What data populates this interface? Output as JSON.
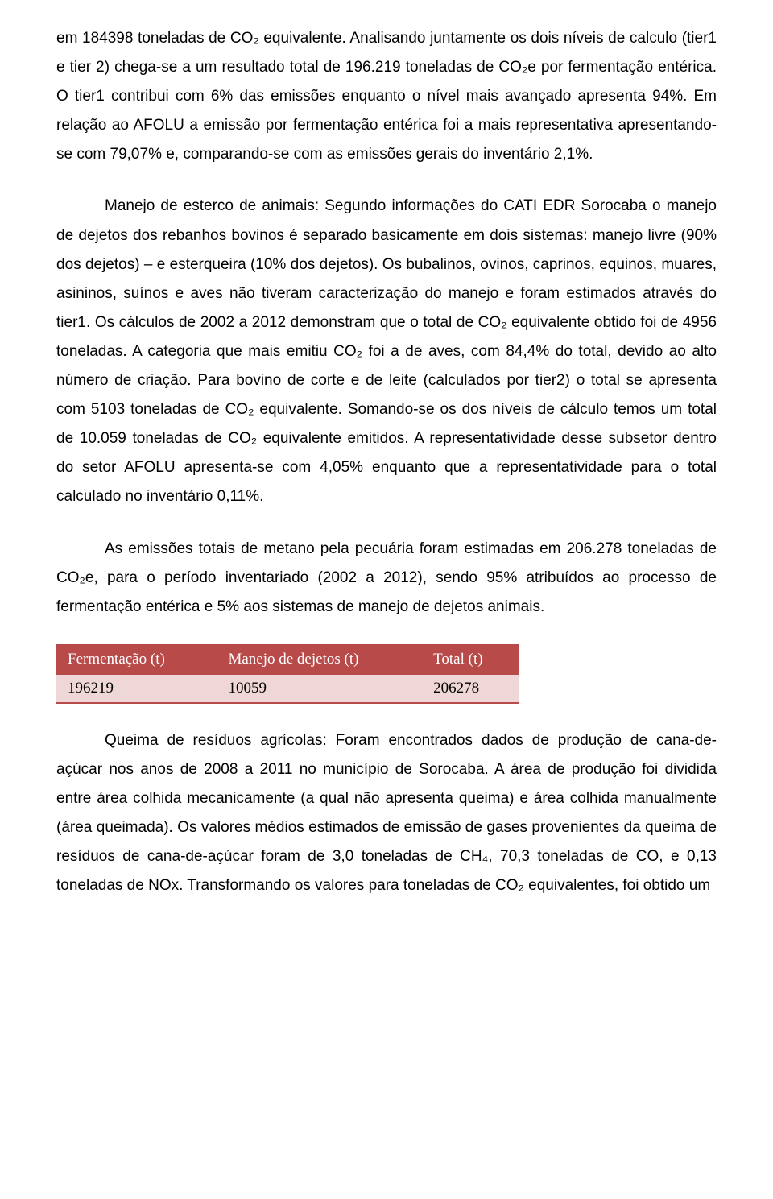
{
  "p1": "em 184398 toneladas de CO₂ equivalente. Analisando juntamente os dois níveis de calculo (tier1 e tier 2) chega-se a um resultado total de 196.219  toneladas de CO₂e por fermentação entérica. O tier1 contribui com 6% das emissões enquanto o nível mais avançado apresenta 94%. Em relação ao AFOLU a emissão por fermentação entérica foi a mais representativa apresentando-se com 79,07% e, comparando-se com as emissões gerais do inventário 2,1%.",
  "p2": "Manejo de esterco de animais: Segundo informações do CATI EDR Sorocaba o manejo de dejetos dos rebanhos bovinos é separado basicamente em dois sistemas: manejo livre (90% dos dejetos) – e esterqueira (10% dos dejetos). Os bubalinos, ovinos, caprinos, equinos, muares, asininos, suínos e aves não tiveram caracterização do manejo e foram estimados através do tier1. Os cálculos de 2002 a 2012 demonstram que o total de CO₂ equivalente obtido foi de 4956 toneladas. A categoria que mais emitiu CO₂ foi a de aves, com 84,4% do total, devido ao alto número de criação. Para bovino de corte e de leite (calculados por tier2) o total se apresenta com 5103 toneladas de CO₂ equivalente. Somando-se os dos níveis de cálculo temos um total de 10.059 toneladas de CO₂ equivalente emitidos. A representatividade desse subsetor dentro do setor AFOLU apresenta-se com 4,05% enquanto que a representatividade para o total calculado no inventário 0,11%.",
  "p3": "As emissões totais de metano pela pecuária foram estimadas em 206.278 toneladas de CO₂e, para o período inventariado (2002 a 2012), sendo 95% atribuídos ao processo de fermentação entérica e 5% aos sistemas de manejo de dejetos animais.",
  "table": {
    "header_bg": "#b84a4a",
    "data_bg": "#f0d7d7",
    "data_border": "#b84a4a",
    "columns": [
      "Fermentação (t)",
      "Manejo de dejetos (t)",
      "Total (t)"
    ],
    "rows": [
      [
        "196219",
        "10059",
        "206278"
      ]
    ]
  },
  "p4": "Queima de resíduos agrícolas: Foram encontrados dados de produção de cana-de-açúcar nos anos de 2008 a 2011 no município de Sorocaba. A área de produção foi dividida entre área colhida mecanicamente (a qual não apresenta queima) e área colhida manualmente (área queimada). Os valores médios estimados de emissão de gases provenientes da queima de resíduos de cana-de-açúcar foram de 3,0 toneladas de CH₄, 70,3 toneladas de CO, e 0,13 toneladas de NOx. Transformando os valores para toneladas de CO₂ equivalentes, foi obtido um"
}
